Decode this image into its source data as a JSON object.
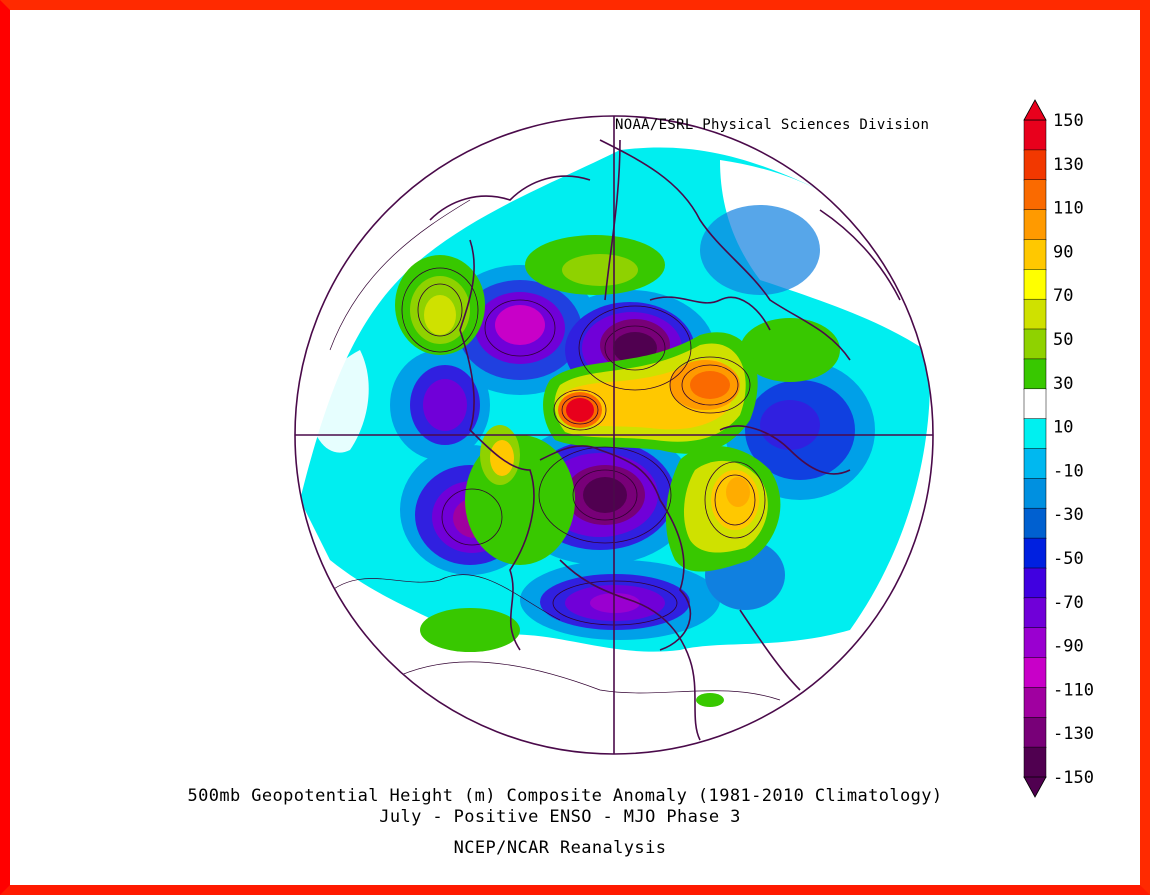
{
  "map": {
    "credit": "NOAA/ESRL Physical Sciences Division",
    "title": "500mb Geopotential Height (m) Composite Anomaly (1981-2010 Climatology)",
    "subtitle": "July - Positive ENSO - MJO Phase 3",
    "source": "NCEP/NCAR Reanalysis"
  },
  "colorbar": {
    "labels": [
      "150",
      "130",
      "110",
      "90",
      "70",
      "50",
      "30",
      "10",
      "-10",
      "-30",
      "-50",
      "-70",
      "-90",
      "-110",
      "-130",
      "-150"
    ],
    "colors": [
      "#e8001c",
      "#f23800",
      "#fa6a00",
      "#ff9a00",
      "#ffc800",
      "#ffff00",
      "#cfe100",
      "#8fd200",
      "#38c800",
      "#ffffff",
      "#00f0f0",
      "#00b8f0",
      "#0090e0",
      "#0060d0",
      "#0020e0",
      "#4000e0",
      "#7000d8",
      "#9a00d0",
      "#c800c8",
      "#a000a0",
      "#780078",
      "#500050"
    ]
  },
  "colors": {
    "frame": "#ff2a00",
    "land_outline": "#4a0a4a"
  }
}
